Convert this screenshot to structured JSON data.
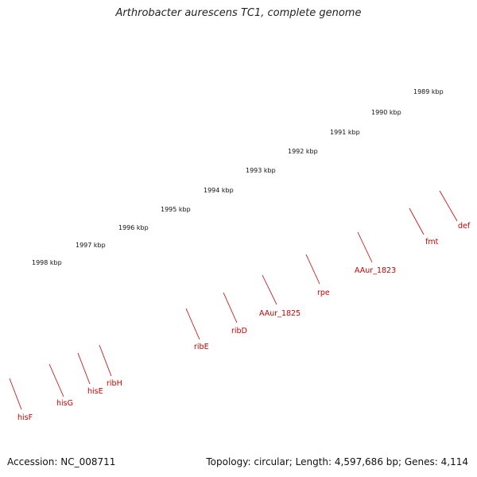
{
  "title": "Arthrobacter aurescens TC1, complete genome",
  "accession": "Accession: NC_008711",
  "summary": "Topology: circular; Length: 4,597,686 bp; Genes: 4,114",
  "scale": {
    "unit": "kbp",
    "ticks": [
      "1989 kbp",
      "1990 kbp",
      "1991 kbp",
      "1992 kbp",
      "1993 kbp",
      "1994 kbp",
      "1995 kbp",
      "1996 kbp",
      "1997 kbp",
      "1998 kbp"
    ]
  },
  "gene_labels": [
    "def",
    "fmt",
    "AAur_1823",
    "rpe",
    "AAur_1825",
    "ribD",
    "ribE",
    "ribH",
    "hisE",
    "hisG",
    "hisF"
  ],
  "colors": {
    "forward_gene": "#ff0000",
    "reverse_gene": "#0000ee",
    "light_red_gene": "#f08a8a",
    "cyan_gene": "#22cccc",
    "steel_gene": "#4a7fb5",
    "backbone": "#888888",
    "tick": "#1a7a1a",
    "label": "#cc0000"
  }
}
